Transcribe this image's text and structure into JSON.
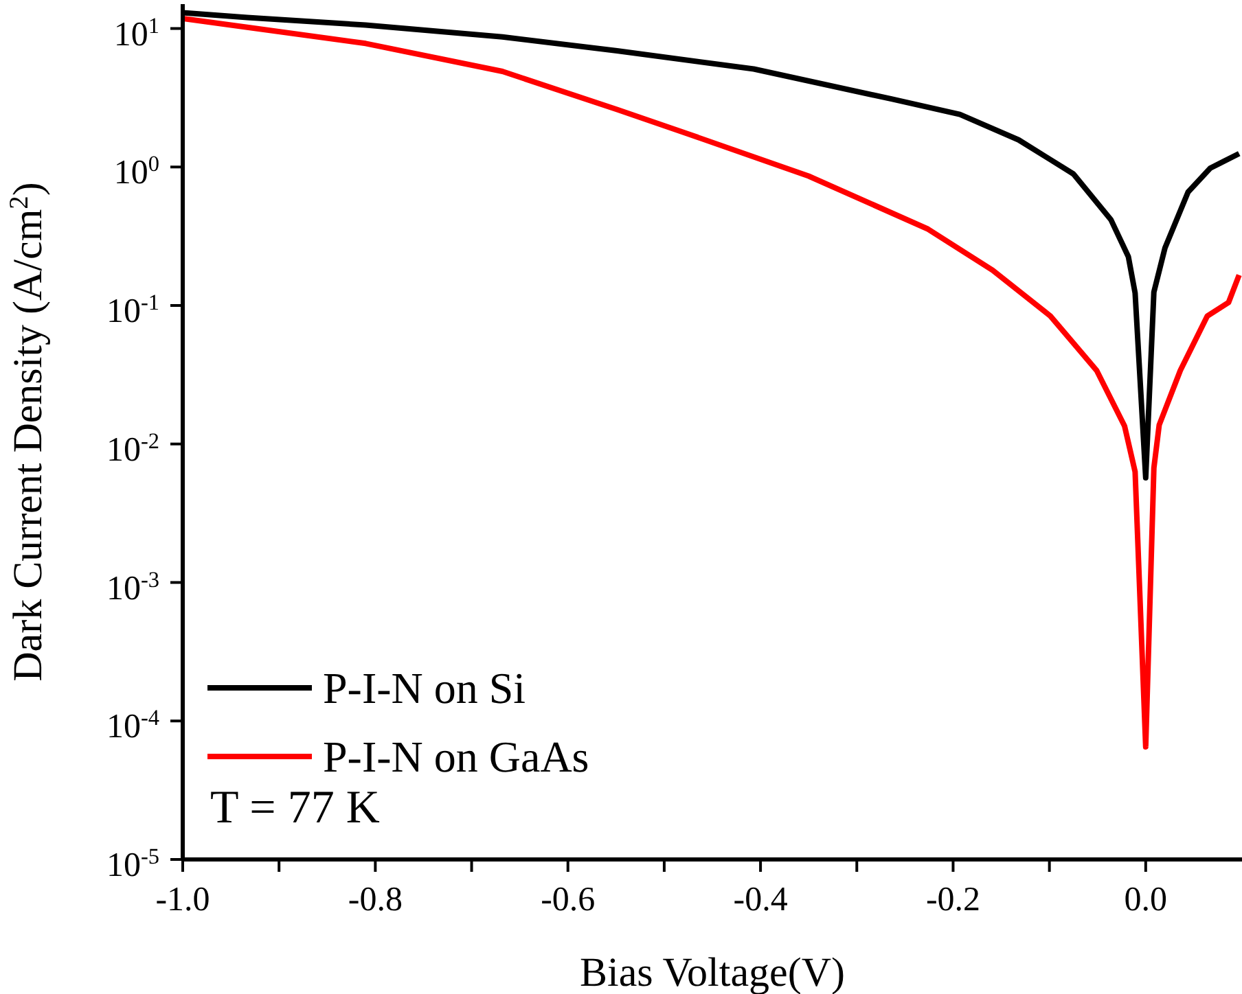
{
  "chart_data": {
    "type": "line",
    "xlabel": "Bias Voltage(V)",
    "ylabel": "Dark Current Density (A/cm$^{2}$)",
    "xlim": [
      -1.0,
      0.1
    ],
    "xticks": [
      {
        "value": -1.0,
        "label": "-1.0"
      },
      {
        "value": -0.9,
        "label": null
      },
      {
        "value": -0.8,
        "label": "-0.8"
      },
      {
        "value": -0.7,
        "label": null
      },
      {
        "value": -0.6,
        "label": "-0.6"
      },
      {
        "value": -0.5,
        "label": null
      },
      {
        "value": -0.4,
        "label": "-0.4"
      },
      {
        "value": -0.3,
        "label": null
      },
      {
        "value": -0.2,
        "label": "-0.2"
      },
      {
        "value": -0.1,
        "label": null
      },
      {
        "value": 0.0,
        "label": "0.0"
      }
    ],
    "ylim": [
      1e-05,
      15
    ],
    "log": "y",
    "yticks": [
      {
        "value": 1e-05,
        "label": "10$^{-5}$"
      },
      {
        "value": 0.0001,
        "label": "10$^{-4}$"
      },
      {
        "value": 0.001,
        "label": "10$^{-3}$"
      },
      {
        "value": 0.01,
        "label": "10$^{-2}$"
      },
      {
        "value": 0.1,
        "label": "10$^{-1}$"
      },
      {
        "value": 1,
        "label": "10$^{0}$"
      },
      {
        "value": 10,
        "label": "10$^{1}$"
      }
    ],
    "grid": false,
    "legend": "bottom left",
    "line_style": "solid",
    "marker": "none",
    "annotations": [
      "T = 77 K"
    ],
    "series": [
      {
        "name": "P-I-N on Si",
        "color": "#000000",
        "x": [
          -1.0,
          -0.933,
          -0.81,
          -0.668,
          -0.549,
          -0.407,
          -0.264,
          -0.193,
          -0.132,
          -0.075,
          -0.036,
          -0.018,
          -0.011,
          0.0,
          0.0085,
          0.02,
          0.044,
          0.067,
          0.097
        ],
        "values": [
          13,
          12,
          10.6,
          8.7,
          6.9,
          5.1,
          3.1,
          2.4,
          1.57,
          0.89,
          0.415,
          0.225,
          0.123,
          0.0057,
          0.125,
          0.26,
          0.66,
          0.98,
          1.25
        ]
      },
      {
        "name": "P-I-N on GaAs",
        "color": "#ff0000",
        "x": [
          -1.0,
          -0.933,
          -0.81,
          -0.668,
          -0.549,
          -0.478,
          -0.35,
          -0.226,
          -0.159,
          -0.099,
          -0.051,
          -0.022,
          -0.011,
          0.0,
          0.0085,
          0.014,
          0.036,
          0.064,
          0.086,
          0.097
        ],
        "values": [
          11.8,
          10.2,
          7.8,
          4.9,
          2.6,
          1.76,
          0.86,
          0.356,
          0.18,
          0.084,
          0.034,
          0.0135,
          0.0063,
          6.5e-05,
          0.0067,
          0.0137,
          0.034,
          0.084,
          0.105,
          0.166
        ]
      }
    ]
  }
}
